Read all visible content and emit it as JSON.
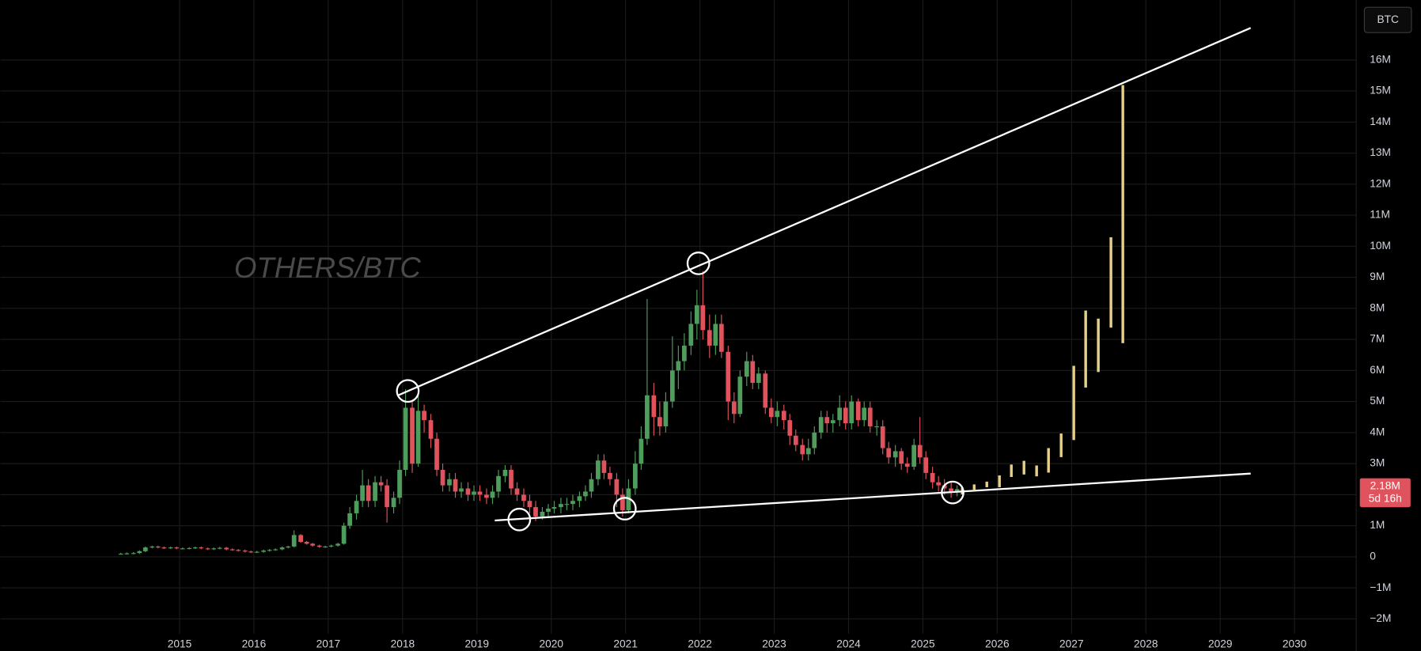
{
  "chart_data": {
    "type": "candlestick",
    "title": "OTHERS/BTC",
    "currency_button": "BTC",
    "last_price": {
      "value": 2.18,
      "label": "2.18M"
    },
    "countdown": "5d 16h",
    "up_color": "#4f9d5c",
    "down_color": "#e0535d",
    "grid": true,
    "xlim": [
      2012.59,
      2030.83
    ],
    "xticks": [
      2015,
      2016,
      2017,
      2018,
      2019,
      2020,
      2021,
      2022,
      2023,
      2024,
      2025,
      2026,
      2027,
      2028,
      2029,
      2030
    ],
    "ylim": [
      -2.48,
      17.93
    ],
    "yticks": [
      {
        "value": -2,
        "label": "−2M"
      },
      {
        "value": -1,
        "label": "−1M"
      },
      0,
      {
        "value": 1,
        "label": "1M"
      },
      {
        "value": 2,
        "label": "2M"
      },
      {
        "value": 3,
        "label": "3M"
      },
      {
        "value": 4,
        "label": "4M"
      },
      {
        "value": 5,
        "label": "5M"
      },
      {
        "value": 6,
        "label": "6M"
      },
      {
        "value": 7,
        "label": "7M"
      },
      {
        "value": 8,
        "label": "8M"
      },
      {
        "value": 9,
        "label": "9M"
      },
      {
        "value": 10,
        "label": "10M"
      },
      {
        "value": 11,
        "label": "11M"
      },
      {
        "value": 12,
        "label": "12M"
      },
      {
        "value": 13,
        "label": "13M"
      },
      {
        "value": 14,
        "label": "14M"
      },
      {
        "value": 15,
        "label": "15M"
      },
      {
        "value": 16,
        "label": "16M"
      }
    ],
    "x": [
      2014.21,
      2014.29,
      2014.38,
      2014.46,
      2014.54,
      2014.63,
      2014.71,
      2014.79,
      2014.88,
      2014.96,
      2015.04,
      2015.13,
      2015.21,
      2015.29,
      2015.38,
      2015.46,
      2015.54,
      2015.63,
      2015.71,
      2015.79,
      2015.88,
      2015.96,
      2016.04,
      2016.13,
      2016.21,
      2016.29,
      2016.38,
      2016.46,
      2016.54,
      2016.63,
      2016.71,
      2016.79,
      2016.88,
      2016.96,
      2017.04,
      2017.13,
      2017.21,
      2017.29,
      2017.38,
      2017.46,
      2017.54,
      2017.63,
      2017.71,
      2017.79,
      2017.88,
      2017.96,
      2018.04,
      2018.13,
      2018.21,
      2018.29,
      2018.38,
      2018.46,
      2018.54,
      2018.63,
      2018.71,
      2018.79,
      2018.88,
      2018.96,
      2019.04,
      2019.13,
      2019.21,
      2019.29,
      2019.38,
      2019.46,
      2019.54,
      2019.63,
      2019.71,
      2019.79,
      2019.88,
      2019.96,
      2020.04,
      2020.13,
      2020.21,
      2020.29,
      2020.38,
      2020.46,
      2020.54,
      2020.63,
      2020.71,
      2020.79,
      2020.88,
      2020.96,
      2021.04,
      2021.13,
      2021.21,
      2021.29,
      2021.38,
      2021.46,
      2021.54,
      2021.63,
      2021.71,
      2021.79,
      2021.88,
      2021.96,
      2022.04,
      2022.13,
      2022.21,
      2022.29,
      2022.38,
      2022.46,
      2022.54,
      2022.63,
      2022.71,
      2022.79,
      2022.88,
      2022.96,
      2023.04,
      2023.13,
      2023.21,
      2023.29,
      2023.38,
      2023.46,
      2023.54,
      2023.63,
      2023.71,
      2023.79,
      2023.88,
      2023.96,
      2024.04,
      2024.13,
      2024.21,
      2024.29,
      2024.38,
      2024.46,
      2024.54,
      2024.63,
      2024.71,
      2024.79,
      2024.88,
      2024.96,
      2025.04,
      2025.13,
      2025.21,
      2025.29,
      2025.38,
      2025.46
    ],
    "open": [
      0.1,
      0.1,
      0.11,
      0.12,
      0.18,
      0.3,
      0.33,
      0.3,
      0.28,
      0.3,
      0.27,
      0.27,
      0.28,
      0.3,
      0.27,
      0.25,
      0.27,
      0.29,
      0.24,
      0.22,
      0.2,
      0.17,
      0.15,
      0.16,
      0.2,
      0.22,
      0.24,
      0.3,
      0.33,
      0.7,
      0.48,
      0.42,
      0.36,
      0.32,
      0.33,
      0.36,
      0.42,
      1.0,
      1.4,
      1.8,
      2.3,
      1.8,
      2.4,
      2.3,
      1.6,
      1.9,
      2.8,
      4.8,
      3.0,
      4.7,
      4.4,
      3.8,
      2.8,
      2.3,
      2.5,
      2.1,
      2.2,
      2.0,
      2.1,
      2.0,
      1.9,
      2.1,
      2.6,
      2.8,
      2.2,
      2.0,
      1.8,
      1.6,
      1.3,
      1.45,
      1.55,
      1.6,
      1.7,
      1.7,
      1.8,
      1.95,
      2.1,
      2.5,
      3.1,
      2.7,
      2.5,
      2.0,
      1.5,
      2.2,
      3.0,
      3.8,
      5.2,
      4.5,
      4.2,
      5.0,
      6.0,
      6.3,
      6.8,
      7.5,
      8.1,
      7.3,
      6.8,
      7.5,
      6.6,
      5.0,
      4.6,
      5.8,
      6.3,
      5.6,
      5.9,
      4.8,
      4.5,
      4.7,
      4.4,
      3.9,
      3.6,
      3.3,
      3.5,
      4.0,
      4.5,
      4.3,
      4.4,
      4.8,
      4.3,
      5.0,
      4.4,
      4.8,
      4.2,
      4.2,
      3.5,
      3.2,
      3.4,
      3.0,
      2.9,
      3.6,
      3.2,
      2.7,
      2.4,
      2.3,
      2.2,
      2.1
    ],
    "high": [
      0.13,
      0.14,
      0.15,
      0.21,
      0.33,
      0.36,
      0.36,
      0.33,
      0.33,
      0.33,
      0.3,
      0.31,
      0.33,
      0.33,
      0.3,
      0.3,
      0.32,
      0.32,
      0.27,
      0.25,
      0.23,
      0.2,
      0.19,
      0.23,
      0.25,
      0.27,
      0.33,
      0.36,
      0.85,
      0.73,
      0.51,
      0.45,
      0.39,
      0.36,
      0.39,
      0.45,
      1.1,
      1.6,
      2.0,
      2.8,
      2.5,
      2.6,
      2.6,
      2.5,
      2.1,
      3.1,
      5.4,
      5.0,
      5.3,
      4.9,
      4.6,
      4.0,
      3.0,
      2.7,
      2.7,
      2.4,
      2.4,
      2.3,
      2.3,
      2.2,
      2.3,
      2.8,
      2.95,
      2.95,
      2.4,
      2.2,
      2.0,
      1.8,
      1.6,
      1.7,
      1.8,
      1.9,
      1.9,
      2.0,
      2.1,
      2.3,
      2.7,
      3.3,
      3.3,
      2.9,
      2.7,
      2.2,
      2.5,
      3.4,
      4.2,
      8.3,
      5.6,
      5.0,
      5.3,
      7.1,
      6.8,
      7.2,
      7.9,
      8.6,
      9.2,
      7.8,
      7.8,
      7.8,
      6.8,
      5.3,
      6.0,
      6.6,
      6.5,
      6.1,
      6.0,
      5.1,
      5.0,
      4.9,
      4.6,
      4.1,
      3.8,
      3.8,
      4.2,
      4.7,
      4.7,
      4.6,
      5.2,
      5.0,
      5.2,
      5.1,
      5.0,
      5.0,
      4.4,
      4.4,
      3.7,
      3.6,
      3.5,
      3.2,
      3.8,
      4.5,
      3.4,
      2.9,
      2.6,
      2.5,
      2.4,
      2.3
    ],
    "low": [
      0.07,
      0.07,
      0.08,
      0.09,
      0.15,
      0.27,
      0.27,
      0.25,
      0.25,
      0.24,
      0.24,
      0.24,
      0.25,
      0.24,
      0.22,
      0.22,
      0.24,
      0.21,
      0.19,
      0.17,
      0.14,
      0.12,
      0.12,
      0.13,
      0.17,
      0.19,
      0.21,
      0.27,
      0.3,
      0.45,
      0.39,
      0.33,
      0.29,
      0.29,
      0.3,
      0.33,
      0.39,
      0.9,
      1.2,
      1.6,
      1.6,
      1.6,
      2.1,
      1.1,
      1.4,
      1.7,
      2.6,
      2.7,
      2.9,
      4.0,
      3.5,
      2.6,
      2.1,
      2.1,
      1.9,
      1.9,
      1.8,
      1.8,
      1.8,
      1.7,
      1.7,
      1.9,
      2.4,
      2.0,
      1.8,
      1.6,
      1.4,
      1.15,
      1.2,
      1.3,
      1.4,
      1.4,
      1.5,
      1.5,
      1.6,
      1.8,
      1.9,
      2.3,
      2.5,
      2.3,
      1.6,
      1.3,
      1.4,
      2.0,
      2.8,
      3.6,
      3.9,
      3.9,
      4.0,
      4.8,
      5.4,
      6.0,
      6.5,
      7.0,
      7.0,
      6.4,
      6.5,
      6.4,
      4.4,
      4.3,
      4.5,
      5.5,
      5.4,
      5.4,
      4.6,
      4.3,
      4.2,
      4.1,
      3.6,
      3.4,
      3.1,
      3.1,
      3.3,
      3.8,
      4.0,
      4.0,
      4.2,
      4.1,
      4.1,
      4.2,
      4.2,
      4.0,
      3.9,
      3.3,
      3.0,
      2.9,
      2.8,
      2.7,
      2.8,
      3.0,
      2.5,
      2.2,
      2.1,
      2.0,
      1.9,
      1.95
    ],
    "close": [
      0.1,
      0.11,
      0.12,
      0.18,
      0.3,
      0.33,
      0.3,
      0.28,
      0.3,
      0.27,
      0.27,
      0.28,
      0.3,
      0.27,
      0.25,
      0.27,
      0.29,
      0.24,
      0.22,
      0.2,
      0.17,
      0.15,
      0.16,
      0.2,
      0.22,
      0.24,
      0.3,
      0.33,
      0.7,
      0.48,
      0.42,
      0.36,
      0.32,
      0.33,
      0.36,
      0.42,
      1.0,
      1.4,
      1.8,
      2.3,
      1.8,
      2.4,
      2.3,
      1.6,
      1.9,
      2.8,
      4.8,
      3.0,
      4.7,
      4.4,
      3.8,
      2.8,
      2.3,
      2.5,
      2.1,
      2.2,
      2.0,
      2.1,
      2.0,
      1.9,
      2.1,
      2.6,
      2.8,
      2.2,
      2.0,
      1.8,
      1.6,
      1.3,
      1.45,
      1.55,
      1.6,
      1.7,
      1.7,
      1.8,
      1.95,
      2.1,
      2.5,
      3.1,
      2.7,
      2.5,
      2.0,
      1.5,
      2.2,
      3.0,
      3.8,
      5.2,
      4.5,
      4.2,
      5.0,
      6.0,
      6.3,
      6.8,
      7.5,
      8.1,
      7.3,
      6.8,
      7.5,
      6.6,
      5.0,
      4.6,
      5.8,
      6.3,
      5.6,
      5.9,
      4.8,
      4.5,
      4.7,
      4.4,
      3.9,
      3.6,
      3.3,
      3.5,
      4.0,
      4.5,
      4.3,
      4.4,
      4.8,
      4.3,
      5.0,
      4.4,
      4.8,
      4.2,
      4.2,
      3.5,
      3.2,
      3.4,
      3.0,
      2.9,
      3.6,
      3.2,
      2.7,
      2.4,
      2.3,
      2.2,
      2.1,
      2.18
    ],
    "projection": {
      "color": "#e6cf86",
      "x": [
        2025.53,
        2025.69,
        2025.86,
        2026.03,
        2026.19,
        2026.36,
        2026.53,
        2026.69,
        2026.86,
        2027.03,
        2027.19,
        2027.36,
        2027.53,
        2027.69
      ],
      "low": [
        2.01,
        2.16,
        2.24,
        2.24,
        2.57,
        2.65,
        2.59,
        2.71,
        3.21,
        3.76,
        5.45,
        5.95,
        7.38,
        6.88
      ],
      "high": [
        2.22,
        2.33,
        2.42,
        2.62,
        2.97,
        3.09,
        2.94,
        3.5,
        3.97,
        6.15,
        7.93,
        7.67,
        10.29,
        15.19
      ]
    },
    "trendlines": [
      {
        "color": "#ffffff",
        "x": [
          2017.93,
          2029.41
        ],
        "y": [
          5.19,
          17.03
        ]
      },
      {
        "color": "#ffffff",
        "x": [
          2019.24,
          2029.41
        ],
        "y": [
          1.17,
          2.68
        ]
      }
    ],
    "markers": {
      "color": "#ffffff",
      "x": [
        2018.07,
        2021.98,
        2019.57,
        2020.99,
        2025.4
      ],
      "y": [
        5.34,
        9.45,
        1.2,
        1.55,
        2.07
      ]
    }
  }
}
